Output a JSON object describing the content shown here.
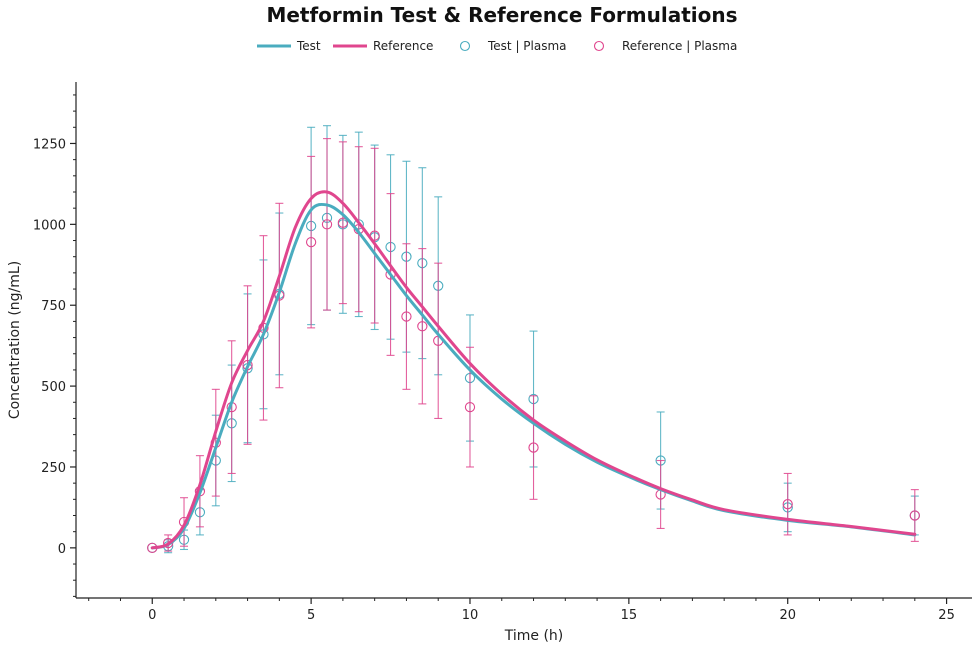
{
  "chart_data": {
    "type": "line",
    "title": "Metformin Test & Reference Formulations",
    "xlabel": "Time (h)",
    "ylabel": "Concentration (ng/mL)",
    "xlim": [
      -2.4,
      25.8
    ],
    "ylim": [
      -155,
      1440
    ],
    "xticks": [
      0,
      5,
      10,
      15,
      20,
      25
    ],
    "yticks": [
      0,
      250,
      500,
      750,
      1000,
      1250
    ],
    "legend": [
      "Test",
      "Reference",
      "Test | Plasma",
      "Reference | Plasma"
    ],
    "colors": {
      "test": "#4aacbf",
      "reference": "#e0468e"
    },
    "series": [
      {
        "name": "Test",
        "kind": "line",
        "color": "#4aacbf",
        "x": [
          0,
          0.5,
          1,
          1.5,
          2,
          2.5,
          3,
          3.5,
          4,
          4.5,
          5,
          5.5,
          6,
          6.5,
          7,
          7.5,
          8,
          8.5,
          9,
          10,
          11,
          12,
          13,
          14,
          15,
          16,
          17,
          18,
          20,
          22,
          24
        ],
        "y": [
          0,
          10,
          60,
          170,
          310,
          450,
          560,
          660,
          790,
          940,
          1045,
          1060,
          1030,
          975,
          910,
          845,
          780,
          720,
          660,
          550,
          460,
          385,
          320,
          265,
          220,
          180,
          145,
          115,
          85,
          65,
          40
        ]
      },
      {
        "name": "Reference",
        "kind": "line",
        "color": "#e0468e",
        "x": [
          0,
          0.5,
          1,
          1.5,
          2,
          2.5,
          3,
          3.5,
          4,
          4.5,
          5,
          5.5,
          6,
          6.5,
          7,
          7.5,
          8,
          8.5,
          9,
          10,
          11,
          12,
          13,
          14,
          15,
          16,
          17,
          18,
          20,
          22,
          24
        ],
        "y": [
          0,
          12,
          70,
          195,
          360,
          510,
          610,
          700,
          840,
          990,
          1080,
          1100,
          1065,
          1005,
          940,
          872,
          805,
          745,
          685,
          570,
          475,
          395,
          330,
          272,
          225,
          183,
          148,
          118,
          88,
          66,
          42
        ]
      },
      {
        "name": "Test | Plasma",
        "kind": "points",
        "color": "#4aacbf",
        "x": [
          0,
          0.5,
          1,
          1.5,
          2,
          2.5,
          3,
          3.5,
          4,
          5,
          5.5,
          6,
          6.5,
          7,
          7.5,
          8,
          8.5,
          9,
          10,
          12,
          16,
          20,
          24
        ],
        "y": [
          0,
          5,
          25,
          110,
          270,
          385,
          555,
          660,
          785,
          995,
          1020,
          1000,
          1000,
          960,
          930,
          900,
          880,
          810,
          525,
          460,
          270,
          125,
          100
        ],
        "err": [
          0,
          20,
          30,
          70,
          140,
          180,
          230,
          230,
          250,
          305,
          285,
          275,
          285,
          285,
          285,
          295,
          295,
          275,
          195,
          210,
          150,
          75,
          60
        ]
      },
      {
        "name": "Reference | Plasma",
        "kind": "points",
        "color": "#e0468e",
        "x": [
          0,
          0.5,
          1,
          1.5,
          2,
          2.5,
          3,
          3.5,
          4,
          5,
          5.5,
          6,
          6.5,
          7,
          7.5,
          8,
          8.5,
          9,
          10,
          12,
          16,
          20,
          24
        ],
        "y": [
          0,
          15,
          80,
          175,
          325,
          435,
          565,
          680,
          780,
          945,
          1000,
          1005,
          985,
          965,
          845,
          715,
          685,
          640,
          435,
          310,
          165,
          135,
          100
        ],
        "err": [
          0,
          25,
          75,
          110,
          165,
          205,
          245,
          285,
          285,
          265,
          265,
          250,
          255,
          270,
          250,
          225,
          240,
          240,
          185,
          160,
          105,
          95,
          80
        ]
      }
    ]
  }
}
